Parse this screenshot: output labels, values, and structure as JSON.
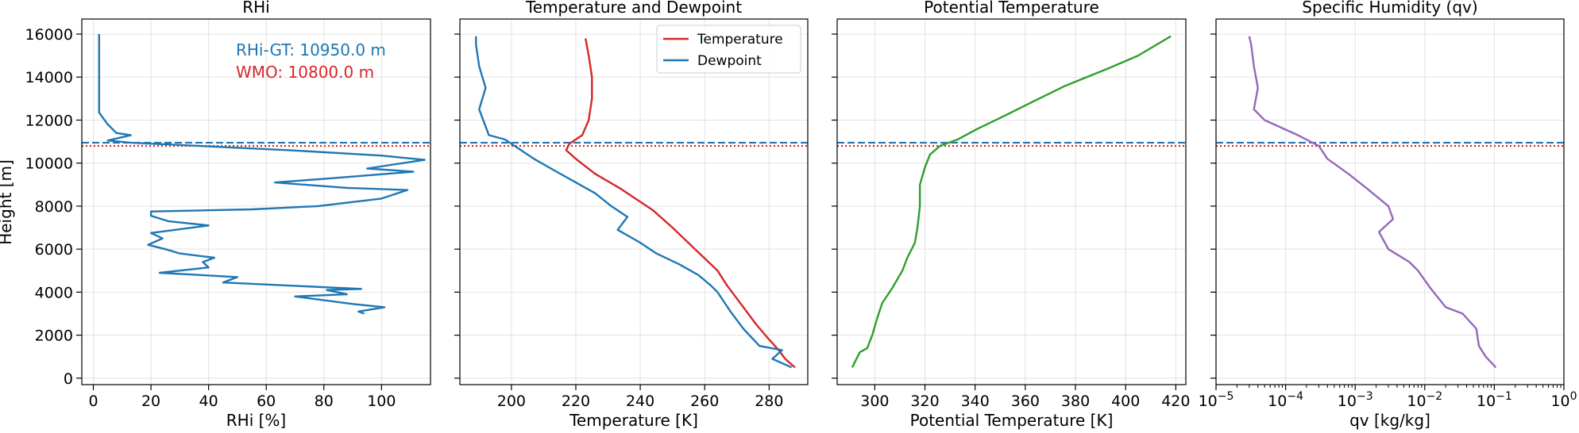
{
  "figure": {
    "shared_ylabel": "Height [m]",
    "annotations": [
      {
        "text": "RHi-GT: 10950.0 m",
        "color": "#1f77b4"
      },
      {
        "text": "WMO:  10800.0 m",
        "color": "#d62728"
      }
    ]
  },
  "chart_data": [
    {
      "type": "line",
      "title": "RHi",
      "xlabel": "RHi [%]",
      "ylabel": "Height [m]",
      "xlim": [
        -4,
        117
      ],
      "ylim": [
        -300,
        16700
      ],
      "xticks": [
        0,
        20,
        40,
        60,
        80,
        100
      ],
      "yticks": [
        0,
        2000,
        4000,
        6000,
        8000,
        10000,
        12000,
        14000,
        16000
      ],
      "grid": true,
      "hlines": [
        {
          "y": 10950,
          "color": "#1f77b4",
          "style": "dashed"
        },
        {
          "y": 10800,
          "color": "#d62728",
          "style": "dotted"
        }
      ],
      "series": [
        {
          "color": "#1f77b4",
          "x_scale": "linear",
          "points": [
            [
              94,
              3000
            ],
            [
              92,
              3100
            ],
            [
              101,
              3300
            ],
            [
              90,
              3450
            ],
            [
              70,
              3800
            ],
            [
              88,
              3900
            ],
            [
              81,
              4100
            ],
            [
              93,
              4150
            ],
            [
              45,
              4450
            ],
            [
              50,
              4700
            ],
            [
              23,
              4900
            ],
            [
              40,
              5150
            ],
            [
              38,
              5400
            ],
            [
              42,
              5600
            ],
            [
              30,
              5800
            ],
            [
              25,
              6000
            ],
            [
              19,
              6200
            ],
            [
              24,
              6500
            ],
            [
              20,
              6750
            ],
            [
              40,
              7100
            ],
            [
              26,
              7300
            ],
            [
              20,
              7550
            ],
            [
              20,
              7750
            ],
            [
              55,
              7850
            ],
            [
              78,
              8000
            ],
            [
              100,
              8350
            ],
            [
              109,
              8750
            ],
            [
              88,
              8850
            ],
            [
              63,
              9100
            ],
            [
              83,
              9300
            ],
            [
              111,
              9600
            ],
            [
              95,
              9750
            ],
            [
              105,
              9950
            ],
            [
              115,
              10150
            ],
            [
              100,
              10350
            ],
            [
              68,
              10600
            ],
            [
              13,
              10950
            ],
            [
              5,
              11050
            ],
            [
              13,
              11300
            ],
            [
              8,
              11400
            ],
            [
              5,
              11800
            ],
            [
              2,
              12350
            ],
            [
              2,
              16000
            ]
          ]
        }
      ]
    },
    {
      "type": "line",
      "title": "Temperature and Dewpoint",
      "xlabel": "Temperature [K]",
      "xlim": [
        184,
        292
      ],
      "ylim": [
        -300,
        16700
      ],
      "xticks": [
        200,
        220,
        240,
        260,
        280
      ],
      "grid": true,
      "legend": "top-right",
      "hlines": [
        {
          "y": 10950,
          "color": "#1f77b4",
          "style": "dashed"
        },
        {
          "y": 10800,
          "color": "#d62728",
          "style": "dotted"
        }
      ],
      "series": [
        {
          "name": "Temperature",
          "color": "#d62728",
          "points": [
            [
              288,
              500
            ],
            [
              285,
              900
            ],
            [
              283,
              1300
            ],
            [
              280,
              1800
            ],
            [
              276,
              2500
            ],
            [
              272,
              3300
            ],
            [
              267,
              4300
            ],
            [
              264,
              5000
            ],
            [
              257,
              6000
            ],
            [
              250,
              7000
            ],
            [
              244,
              7800
            ],
            [
              234,
              8800
            ],
            [
              226,
              9500
            ],
            [
              220,
              10200
            ],
            [
              217,
              10600
            ],
            [
              218,
              10900
            ],
            [
              222,
              11300
            ],
            [
              224,
              12000
            ],
            [
              225,
              13000
            ],
            [
              225,
              14000
            ],
            [
              224,
              15000
            ],
            [
              223,
              15800
            ]
          ]
        },
        {
          "name": "Dewpoint",
          "color": "#1f77b4",
          "points": [
            [
              287,
              500
            ],
            [
              281,
              900
            ],
            [
              284,
              1300
            ],
            [
              277,
              1500
            ],
            [
              272,
              2300
            ],
            [
              268,
              3100
            ],
            [
              264,
              4000
            ],
            [
              262,
              4300
            ],
            [
              258,
              4800
            ],
            [
              252,
              5300
            ],
            [
              245,
              5800
            ],
            [
              240,
              6300
            ],
            [
              233,
              6900
            ],
            [
              236,
              7500
            ],
            [
              231,
              8000
            ],
            [
              226,
              8600
            ],
            [
              220,
              9100
            ],
            [
              214,
              9600
            ],
            [
              207,
              10200
            ],
            [
              201,
              10800
            ],
            [
              198,
              11100
            ],
            [
              193,
              11300
            ],
            [
              190,
              12500
            ],
            [
              192,
              13500
            ],
            [
              190,
              14500
            ],
            [
              189,
              15500
            ],
            [
              189,
              15900
            ]
          ]
        }
      ]
    },
    {
      "type": "line",
      "title": "Potential Temperature",
      "xlabel": "Potential Temperature [K]",
      "xlim": [
        285,
        424
      ],
      "ylim": [
        -300,
        16700
      ],
      "xticks": [
        300,
        320,
        340,
        360,
        380,
        400,
        420
      ],
      "grid": true,
      "hlines": [
        {
          "y": 10950,
          "color": "#1f77b4",
          "style": "dashed"
        },
        {
          "y": 10800,
          "color": "#d62728",
          "style": "dotted"
        }
      ],
      "series": [
        {
          "color": "#2ca02c",
          "points": [
            [
              291,
              500
            ],
            [
              294,
              1200
            ],
            [
              297,
              1400
            ],
            [
              299,
              2000
            ],
            [
              301,
              2800
            ],
            [
              303,
              3500
            ],
            [
              307,
              4200
            ],
            [
              311,
              5000
            ],
            [
              313,
              5600
            ],
            [
              316,
              6300
            ],
            [
              317,
              7000
            ],
            [
              318,
              8000
            ],
            [
              318,
              9000
            ],
            [
              320,
              9800
            ],
            [
              322,
              10400
            ],
            [
              326,
              10800
            ],
            [
              333,
              11100
            ],
            [
              341,
              11600
            ],
            [
              350,
              12100
            ],
            [
              362,
              12800
            ],
            [
              376,
              13600
            ],
            [
              393,
              14400
            ],
            [
              405,
              15000
            ],
            [
              418,
              15900
            ]
          ]
        }
      ]
    },
    {
      "type": "line",
      "title": "Specific Humidity (qv)",
      "xlabel": "qv [kg/kg]",
      "x_scale": "log",
      "xlim": [
        1e-05,
        1
      ],
      "ylim": [
        -300,
        16700
      ],
      "xticks": [
        "10−5",
        "10−4",
        "10−3",
        "10−2",
        "10−1",
        "100"
      ],
      "grid": true,
      "hlines": [
        {
          "y": 10950,
          "color": "#1f77b4",
          "style": "dashed"
        },
        {
          "y": 10800,
          "color": "#d62728",
          "style": "dotted"
        }
      ],
      "series": [
        {
          "color": "#9467bd",
          "points": [
            [
              0.105,
              500
            ],
            [
              0.075,
              1000
            ],
            [
              0.06,
              1500
            ],
            [
              0.055,
              2300
            ],
            [
              0.035,
              3000
            ],
            [
              0.02,
              3300
            ],
            [
              0.012,
              4200
            ],
            [
              0.008,
              5000
            ],
            [
              0.006,
              5400
            ],
            [
              0.003,
              6000
            ],
            [
              0.0022,
              6800
            ],
            [
              0.0035,
              7400
            ],
            [
              0.003,
              8000
            ],
            [
              0.0015,
              8800
            ],
            [
              0.0008,
              9500
            ],
            [
              0.0004,
              10200
            ],
            [
              0.0003,
              10800
            ],
            [
              0.00015,
              11300
            ],
            [
              5e-05,
              12000
            ],
            [
              3.5e-05,
              12500
            ],
            [
              4e-05,
              13500
            ],
            [
              3.5e-05,
              14500
            ],
            [
              3.2e-05,
              15500
            ],
            [
              3e-05,
              15900
            ]
          ]
        }
      ]
    }
  ]
}
